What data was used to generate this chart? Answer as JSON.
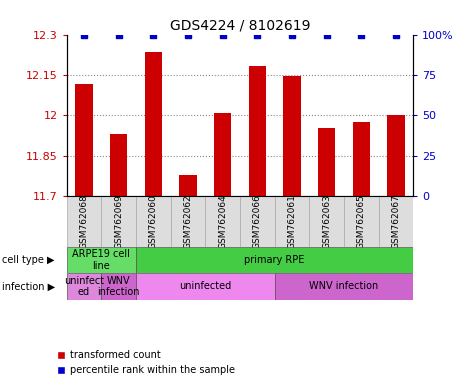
{
  "title": "GDS4224 / 8102619",
  "samples": [
    "GSM762068",
    "GSM762069",
    "GSM762060",
    "GSM762062",
    "GSM762064",
    "GSM762066",
    "GSM762061",
    "GSM762063",
    "GSM762065",
    "GSM762067"
  ],
  "transformed_counts": [
    12.115,
    11.93,
    12.235,
    11.78,
    12.01,
    12.185,
    12.145,
    11.955,
    11.975,
    12.0
  ],
  "percentile_ranks": [
    100,
    100,
    100,
    100,
    100,
    100,
    100,
    100,
    100,
    100
  ],
  "y_min": 11.7,
  "y_max": 12.3,
  "y_ticks": [
    11.7,
    11.85,
    12.0,
    12.15,
    12.3
  ],
  "y_tick_labels": [
    "11.7",
    "11.85",
    "12",
    "12.15",
    "12.3"
  ],
  "y2_ticks": [
    0,
    25,
    50,
    75,
    100
  ],
  "y2_tick_labels": [
    "0",
    "25",
    "50",
    "75",
    "100%"
  ],
  "bar_color": "#cc0000",
  "dot_color": "#0000cc",
  "cell_type_groups": [
    {
      "label": "ARPE19 cell\nline",
      "start": 0,
      "end": 2,
      "color": "#66dd66"
    },
    {
      "label": "primary RPE",
      "start": 2,
      "end": 10,
      "color": "#44cc44"
    }
  ],
  "infection_groups": [
    {
      "label": "uninfect\ned",
      "start": 0,
      "end": 1,
      "color": "#dd88dd"
    },
    {
      "label": "WNV\ninfection",
      "start": 1,
      "end": 2,
      "color": "#cc66cc"
    },
    {
      "label": "uninfected",
      "start": 2,
      "end": 6,
      "color": "#ee88ee"
    },
    {
      "label": "WNV infection",
      "start": 6,
      "end": 10,
      "color": "#cc66cc"
    }
  ],
  "cell_type_label": "cell type",
  "infection_label": "infection",
  "legend_items": [
    {
      "label": "transformed count",
      "color": "#cc0000",
      "marker": "s"
    },
    {
      "label": "percentile rank within the sample",
      "color": "#0000cc",
      "marker": "s"
    }
  ],
  "grid_color": "#888888",
  "tick_label_color_left": "#cc0000",
  "tick_label_color_right": "#0000cc"
}
